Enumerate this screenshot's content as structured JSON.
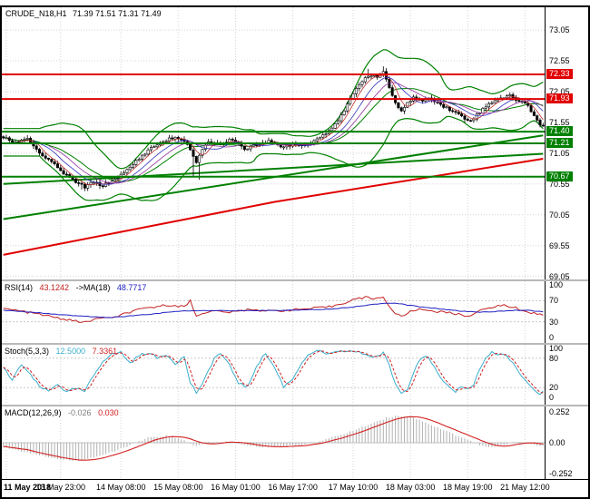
{
  "window": {
    "background": "#ffffff",
    "frame_color": "#000000",
    "grid_color": "#d6d6d6"
  },
  "time_axis": {
    "tick_bars": [
      1,
      19,
      39,
      58,
      77,
      96,
      116,
      135,
      154,
      173
    ],
    "labels": [
      "11 May 2018",
      "13 May 23:00",
      "14 May 08:00",
      "15 May 08:00",
      "16 May 01:00",
      "16 May 17:00",
      "17 May 10:00",
      "18 May 03:00",
      "18 May 19:00",
      "21 May 12:00"
    ]
  },
  "chart_data": [
    {
      "type": "candlestick",
      "title": "CRUDE_N18,H1",
      "ohlc_display": "71.39 71.51 71.31 71.49",
      "bars": 180,
      "ylim": [
        69.0,
        73.42
      ],
      "y_ticks": [
        73.05,
        72.55,
        72.05,
        71.55,
        71.05,
        70.55,
        70.05,
        69.55,
        69.05
      ],
      "levels": [
        {
          "price": 72.33,
          "color": "#e00000",
          "label": "72.33"
        },
        {
          "price": 71.93,
          "color": "#e00000",
          "label": "71.93"
        },
        {
          "price": 71.4,
          "color": "#008000",
          "label": "71.40"
        },
        {
          "price": 71.21,
          "color": "#008000",
          "label": "71.21"
        },
        {
          "price": 70.67,
          "color": "#008000",
          "label": "70.67"
        }
      ],
      "close_waypoints": [
        [
          0,
          71.3
        ],
        [
          4,
          71.22
        ],
        [
          8,
          71.3
        ],
        [
          12,
          71.05
        ],
        [
          16,
          70.9
        ],
        [
          20,
          70.72
        ],
        [
          24,
          70.58
        ],
        [
          27,
          70.5
        ],
        [
          30,
          70.58
        ],
        [
          33,
          70.52
        ],
        [
          36,
          70.6
        ],
        [
          40,
          70.72
        ],
        [
          44,
          70.92
        ],
        [
          48,
          71.1
        ],
        [
          52,
          71.22
        ],
        [
          56,
          71.3
        ],
        [
          60,
          71.26
        ],
        [
          62,
          71.1
        ],
        [
          64,
          70.88
        ],
        [
          66,
          71.12
        ],
        [
          68,
          71.24
        ],
        [
          72,
          71.2
        ],
        [
          76,
          71.28
        ],
        [
          80,
          71.12
        ],
        [
          84,
          71.18
        ],
        [
          88,
          71.26
        ],
        [
          92,
          71.14
        ],
        [
          96,
          71.2
        ],
        [
          100,
          71.18
        ],
        [
          104,
          71.28
        ],
        [
          108,
          71.42
        ],
        [
          112,
          71.65
        ],
        [
          115,
          71.92
        ],
        [
          118,
          72.18
        ],
        [
          121,
          72.32
        ],
        [
          124,
          72.28
        ],
        [
          126,
          72.38
        ],
        [
          128,
          72.12
        ],
        [
          130,
          71.85
        ],
        [
          132,
          71.72
        ],
        [
          134,
          71.88
        ],
        [
          136,
          71.95
        ],
        [
          139,
          71.9
        ],
        [
          142,
          71.94
        ],
        [
          145,
          71.84
        ],
        [
          148,
          71.76
        ],
        [
          151,
          71.68
        ],
        [
          154,
          71.58
        ],
        [
          156,
          71.62
        ],
        [
          158,
          71.72
        ],
        [
          161,
          71.85
        ],
        [
          164,
          71.94
        ],
        [
          168,
          71.98
        ],
        [
          171,
          71.9
        ],
        [
          174,
          71.82
        ],
        [
          176,
          71.66
        ],
        [
          178,
          71.52
        ],
        [
          179,
          71.49
        ]
      ],
      "noise": 0.022,
      "low_spikes": [
        [
          26,
          70.46
        ],
        [
          29,
          70.49
        ],
        [
          63,
          70.66
        ],
        [
          65,
          70.62
        ]
      ],
      "high_spikes": [
        [
          121,
          72.42
        ],
        [
          126,
          72.46
        ]
      ],
      "bollinger": {
        "period": 20,
        "deviation": 2,
        "pad": 0.08,
        "color": "#008000"
      },
      "short_mas": [
        {
          "period": 5,
          "color": "#c03030"
        },
        {
          "period": 10,
          "color": "#3030c0"
        },
        {
          "period": 15,
          "color": "#9030a0"
        }
      ],
      "long_ma": {
        "color": "#e00000",
        "width": 2,
        "waypoints": [
          [
            0,
            69.4
          ],
          [
            90,
            70.26
          ],
          [
            179,
            70.96
          ]
        ]
      },
      "trendlines": [
        {
          "color": "#008000",
          "width": 2,
          "waypoints": [
            [
              0,
              69.98
            ],
            [
              179,
              71.34
            ]
          ]
        },
        {
          "color": "#008000",
          "width": 2,
          "waypoints": [
            [
              0,
              70.55
            ],
            [
              179,
              71.04
            ]
          ]
        }
      ],
      "candle": {
        "up_fill": "#ffffff",
        "down_fill": "#000000",
        "outline": "#000000"
      }
    },
    {
      "type": "line",
      "name": "RSI",
      "label": "RSI(14)",
      "value": "43.1242",
      "ma_label": "->MA(18)",
      "ma_value": "48.7717",
      "range": [
        0,
        100
      ],
      "ticks": [
        100,
        70,
        30,
        0
      ],
      "level_lines": [
        70,
        30
      ],
      "series": [
        {
          "name": "rsi",
          "color": "#c22020",
          "noise": 2.2,
          "clamp": [
            3,
            97
          ],
          "waypoints": [
            [
              0,
              55
            ],
            [
              6,
              50
            ],
            [
              12,
              44
            ],
            [
              18,
              37
            ],
            [
              24,
              31
            ],
            [
              28,
              29
            ],
            [
              32,
              38
            ],
            [
              36,
              36
            ],
            [
              40,
              45
            ],
            [
              46,
              54
            ],
            [
              52,
              60
            ],
            [
              56,
              62
            ],
            [
              60,
              58
            ],
            [
              62,
              70
            ],
            [
              64,
              40
            ],
            [
              66,
              47
            ],
            [
              70,
              50
            ],
            [
              76,
              48
            ],
            [
              82,
              54
            ],
            [
              88,
              50
            ],
            [
              94,
              52
            ],
            [
              100,
              54
            ],
            [
              104,
              56
            ],
            [
              108,
              58
            ],
            [
              112,
              64
            ],
            [
              116,
              72
            ],
            [
              120,
              76
            ],
            [
              124,
              74
            ],
            [
              126,
              78
            ],
            [
              128,
              58
            ],
            [
              130,
              46
            ],
            [
              132,
              39
            ],
            [
              134,
              47
            ],
            [
              138,
              54
            ],
            [
              142,
              51
            ],
            [
              146,
              48
            ],
            [
              150,
              45
            ],
            [
              154,
              41
            ],
            [
              158,
              50
            ],
            [
              162,
              58
            ],
            [
              166,
              61
            ],
            [
              169,
              58
            ],
            [
              172,
              52
            ],
            [
              175,
              47
            ],
            [
              178,
              44
            ],
            [
              179,
              43
            ]
          ]
        },
        {
          "name": "rsi-ma",
          "color": "#2020c2",
          "noise": 0.7,
          "clamp": [
            3,
            97
          ],
          "waypoints": [
            [
              0,
              52
            ],
            [
              12,
              47
            ],
            [
              24,
              41
            ],
            [
              36,
              38
            ],
            [
              48,
              44
            ],
            [
              60,
              51
            ],
            [
              72,
              51
            ],
            [
              84,
              51
            ],
            [
              96,
              52
            ],
            [
              108,
              54
            ],
            [
              116,
              58
            ],
            [
              124,
              64
            ],
            [
              130,
              65
            ],
            [
              136,
              60
            ],
            [
              144,
              55
            ],
            [
              152,
              50
            ],
            [
              158,
              48
            ],
            [
              164,
              50
            ],
            [
              170,
              52
            ],
            [
              175,
              51
            ],
            [
              179,
              49
            ]
          ]
        }
      ]
    },
    {
      "type": "line",
      "name": "Stochastic",
      "label": "Stoch(5,3,3)",
      "value": "12.5000",
      "signal_value": "7.3361",
      "range": [
        0,
        100
      ],
      "ticks": [
        100,
        80,
        20,
        0
      ],
      "level_lines": [
        80,
        20
      ],
      "series": [
        {
          "name": "stoch-main",
          "color": "#3aaecc",
          "noise": 3,
          "clamp": [
            2,
            98
          ],
          "waypoints": [
            [
              0,
              60
            ],
            [
              3,
              35
            ],
            [
              6,
              68
            ],
            [
              9,
              45
            ],
            [
              12,
              22
            ],
            [
              15,
              12
            ],
            [
              18,
              28
            ],
            [
              21,
              10
            ],
            [
              24,
              18
            ],
            [
              27,
              12
            ],
            [
              30,
              45
            ],
            [
              33,
              75
            ],
            [
              36,
              88
            ],
            [
              39,
              92
            ],
            [
              42,
              70
            ],
            [
              45,
              85
            ],
            [
              48,
              92
            ],
            [
              51,
              80
            ],
            [
              54,
              88
            ],
            [
              57,
              70
            ],
            [
              60,
              82
            ],
            [
              62,
              30
            ],
            [
              64,
              10
            ],
            [
              66,
              25
            ],
            [
              68,
              55
            ],
            [
              70,
              80
            ],
            [
              72,
              90
            ],
            [
              75,
              65
            ],
            [
              78,
              30
            ],
            [
              81,
              20
            ],
            [
              84,
              65
            ],
            [
              87,
              90
            ],
            [
              90,
              60
            ],
            [
              93,
              22
            ],
            [
              96,
              38
            ],
            [
              99,
              72
            ],
            [
              102,
              90
            ],
            [
              105,
              94
            ],
            [
              108,
              88
            ],
            [
              111,
              92
            ],
            [
              114,
              95
            ],
            [
              117,
              93
            ],
            [
              120,
              88
            ],
            [
              123,
              82
            ],
            [
              126,
              90
            ],
            [
              128,
              65
            ],
            [
              130,
              28
            ],
            [
              132,
              8
            ],
            [
              134,
              18
            ],
            [
              136,
              52
            ],
            [
              138,
              78
            ],
            [
              140,
              86
            ],
            [
              142,
              72
            ],
            [
              144,
              48
            ],
            [
              146,
              30
            ],
            [
              148,
              18
            ],
            [
              150,
              12
            ],
            [
              152,
              24
            ],
            [
              154,
              16
            ],
            [
              156,
              28
            ],
            [
              158,
              58
            ],
            [
              160,
              80
            ],
            [
              162,
              92
            ],
            [
              164,
              86
            ],
            [
              166,
              90
            ],
            [
              168,
              76
            ],
            [
              170,
              60
            ],
            [
              172,
              42
            ],
            [
              174,
              26
            ],
            [
              176,
              14
            ],
            [
              178,
              8
            ],
            [
              179,
              12
            ]
          ]
        },
        {
          "name": "stoch-signal",
          "color": "#d22020",
          "derive_sma": 3,
          "dash": "3,2"
        }
      ]
    },
    {
      "type": "macd",
      "label": "MACD(12,26,9)",
      "value": "-0.026",
      "signal_value": "0.030",
      "range": [
        -0.27,
        0.27
      ],
      "ticks": [
        {
          "v": 0.252,
          "label": "0.252"
        },
        {
          "v": 0,
          "label": "0.00"
        },
        {
          "v": -0.252,
          "label": "-0.252"
        }
      ],
      "hist_color": "#b0b0b0",
      "signal_color": "#d22020",
      "signal_sma": 9,
      "noise": 0.006,
      "waypoints": [
        [
          0,
          -0.03
        ],
        [
          6,
          -0.07
        ],
        [
          12,
          -0.1
        ],
        [
          18,
          -0.135
        ],
        [
          24,
          -0.15
        ],
        [
          30,
          -0.12
        ],
        [
          36,
          -0.08
        ],
        [
          42,
          -0.02
        ],
        [
          48,
          0.04
        ],
        [
          54,
          0.06
        ],
        [
          60,
          0.02
        ],
        [
          64,
          -0.03
        ],
        [
          68,
          0
        ],
        [
          74,
          0.01
        ],
        [
          80,
          -0.02
        ],
        [
          86,
          -0.035
        ],
        [
          92,
          -0.03
        ],
        [
          98,
          -0.02
        ],
        [
          104,
          0.01
        ],
        [
          110,
          0.05
        ],
        [
          116,
          0.1
        ],
        [
          122,
          0.16
        ],
        [
          127,
          0.205
        ],
        [
          131,
          0.225
        ],
        [
          135,
          0.215
        ],
        [
          139,
          0.18
        ],
        [
          143,
          0.135
        ],
        [
          147,
          0.095
        ],
        [
          151,
          0.055
        ],
        [
          155,
          0.015
        ],
        [
          158,
          -0.02
        ],
        [
          161,
          -0.04
        ],
        [
          164,
          -0.03
        ],
        [
          167,
          -0.012
        ],
        [
          170,
          0.01
        ],
        [
          173,
          0.002
        ],
        [
          176,
          -0.02
        ],
        [
          179,
          -0.026
        ]
      ]
    }
  ]
}
